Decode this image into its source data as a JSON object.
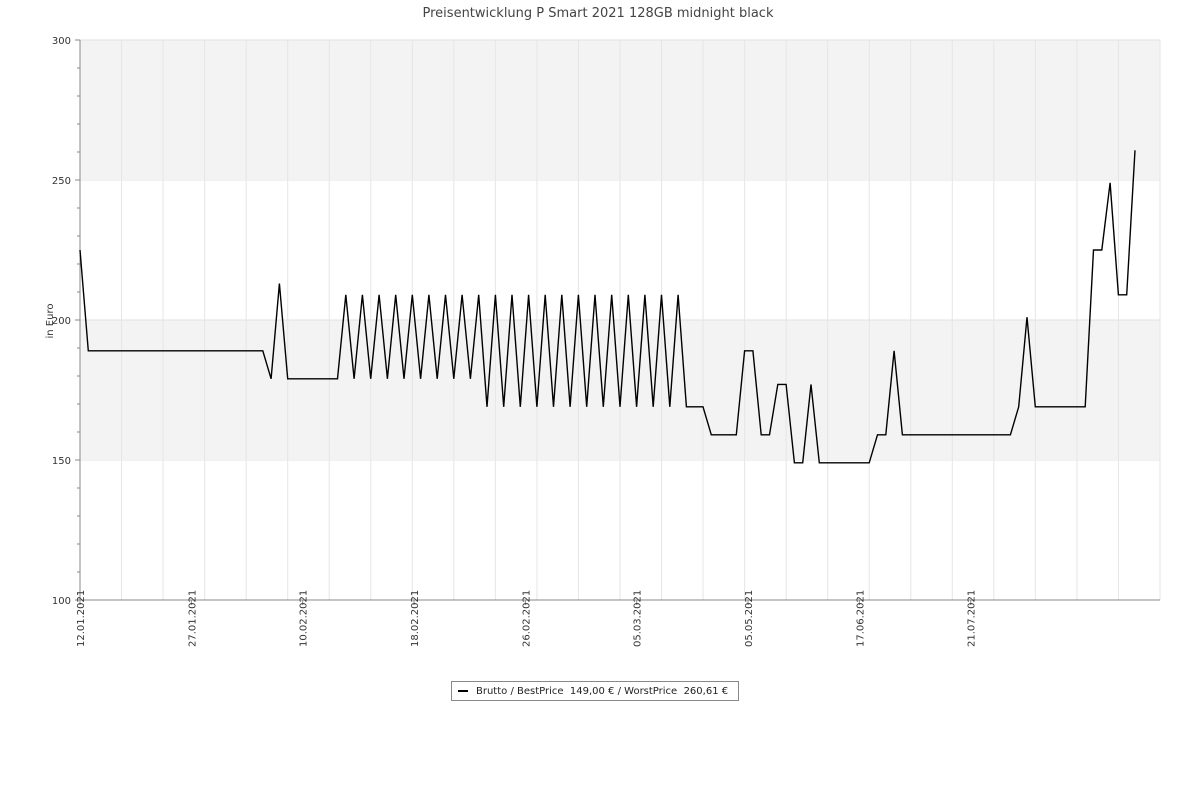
{
  "chart_data": {
    "type": "line",
    "title": "Preisentwicklung P Smart 2021 128GB midnight black",
    "ylabel": "in Euro",
    "xlabel": "",
    "ylim": [
      100,
      300
    ],
    "yticks": [
      100,
      150,
      200,
      250,
      300
    ],
    "xtick_labels": [
      "12.01.2021",
      "27.01.2021",
      "10.02.2021",
      "18.02.2021",
      "26.02.2021",
      "05.03.2021",
      "05.05.2021",
      "17.06.2021",
      "21.07.2021"
    ],
    "grid": true,
    "bands": "alternating light gray between ticks",
    "legend_position": "bottom-center",
    "series": [
      {
        "name": "Brutto / BestPrice  149,00 € / WorstPrice  260,61 €",
        "color": "#000000",
        "points": [
          [
            0,
            225
          ],
          [
            1,
            189
          ],
          [
            22,
            189
          ],
          [
            23,
            179
          ],
          [
            24,
            213
          ],
          [
            25,
            179
          ],
          [
            31,
            179
          ],
          [
            32,
            209
          ],
          [
            33,
            179
          ],
          [
            34,
            209
          ],
          [
            35,
            179
          ],
          [
            36,
            209
          ],
          [
            37,
            179
          ],
          [
            38,
            209
          ],
          [
            39,
            179
          ],
          [
            40,
            209
          ],
          [
            41,
            179
          ],
          [
            42,
            209
          ],
          [
            43,
            179
          ],
          [
            44,
            209
          ],
          [
            45,
            179
          ],
          [
            46,
            209
          ],
          [
            47,
            179
          ],
          [
            48,
            209
          ],
          [
            49,
            169
          ],
          [
            50,
            209
          ],
          [
            51,
            169
          ],
          [
            52,
            209
          ],
          [
            53,
            169
          ],
          [
            54,
            209
          ],
          [
            55,
            169
          ],
          [
            56,
            209
          ],
          [
            57,
            169
          ],
          [
            58,
            209
          ],
          [
            59,
            169
          ],
          [
            60,
            209
          ],
          [
            61,
            169
          ],
          [
            62,
            209
          ],
          [
            63,
            169
          ],
          [
            64,
            209
          ],
          [
            65,
            169
          ],
          [
            66,
            209
          ],
          [
            67,
            169
          ],
          [
            68,
            209
          ],
          [
            69,
            169
          ],
          [
            70,
            209
          ],
          [
            71,
            169
          ],
          [
            72,
            209
          ],
          [
            73,
            169
          ],
          [
            75,
            169
          ],
          [
            76,
            159
          ],
          [
            79,
            159
          ],
          [
            80,
            189
          ],
          [
            81,
            189
          ],
          [
            82,
            159
          ],
          [
            83,
            159
          ],
          [
            84,
            177
          ],
          [
            85,
            177
          ],
          [
            86,
            149
          ],
          [
            87,
            149
          ],
          [
            88,
            177
          ],
          [
            89,
            149
          ],
          [
            95,
            149
          ],
          [
            96,
            159
          ],
          [
            97,
            159
          ],
          [
            98,
            189
          ],
          [
            99,
            159
          ],
          [
            112,
            159
          ],
          [
            113,
            169
          ],
          [
            114,
            201
          ],
          [
            115,
            169
          ],
          [
            121,
            169
          ],
          [
            122,
            225
          ],
          [
            123,
            225
          ],
          [
            124,
            249
          ],
          [
            125,
            209
          ],
          [
            126,
            209
          ],
          [
            127,
            260.61
          ]
        ]
      }
    ]
  },
  "legend": {
    "label": "Brutto / BestPrice  149,00 € / WorstPrice  260,61 €"
  }
}
